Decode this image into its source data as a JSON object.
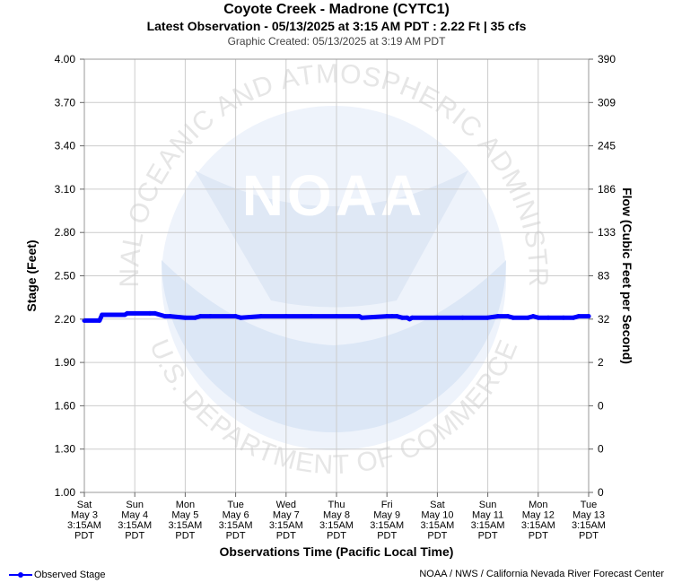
{
  "header": {
    "title": "Coyote Creek - Madrone (CYTC1)",
    "subtitle": "Latest Observation - 05/13/2025 at 3:15 AM PDT : 2.22 Ft | 35 cfs",
    "created": "Graphic Created: 05/13/2025 at 3:19 AM PDT"
  },
  "footer": {
    "legend_label": "Observed Stage",
    "credit": "NOAA / NWS / California Nevada River Forecast Center"
  },
  "watermark": {
    "ring_text_top": "NATIONAL OCEANIC AND ATMOSPHERIC ADMINISTRATION",
    "ring_text_bottom": "U.S. DEPARTMENT OF COMMERCE",
    "logo_text": "NOAA"
  },
  "colors": {
    "series": "#0000ff",
    "grid": "#cccccc",
    "watermark": "#dfe8f5"
  },
  "chart_data": {
    "type": "line",
    "title": "Coyote Creek - Madrone (CYTC1)",
    "xlabel": "Observations Time (Pacific Local Time)",
    "ylabel": "Stage (Feet)",
    "ylabel_right": "Flow (Cubic Feet per Second)",
    "ylim": [
      1.0,
      4.0
    ],
    "xlim": [
      0,
      10
    ],
    "grid": true,
    "legend": "bottom-left",
    "x_ticks": [
      [
        "Sat",
        "May 3",
        "3:15AM",
        "PDT"
      ],
      [
        "Sun",
        "May 4",
        "3:15AM",
        "PDT"
      ],
      [
        "Mon",
        "May 5",
        "3:15AM",
        "PDT"
      ],
      [
        "Tue",
        "May 6",
        "3:15AM",
        "PDT"
      ],
      [
        "Wed",
        "May 7",
        "3:15AM",
        "PDT"
      ],
      [
        "Thu",
        "May 8",
        "3:15AM",
        "PDT"
      ],
      [
        "Fri",
        "May 9",
        "3:15AM",
        "PDT"
      ],
      [
        "Sat",
        "May 10",
        "3:15AM",
        "PDT"
      ],
      [
        "Sun",
        "May 11",
        "3:15AM",
        "PDT"
      ],
      [
        "Mon",
        "May 12",
        "3:15AM",
        "PDT"
      ],
      [
        "Tue",
        "May 13",
        "3:15AM",
        "PDT"
      ]
    ],
    "y_ticks_left": [
      "4.00",
      "3.70",
      "3.40",
      "3.10",
      "2.80",
      "2.50",
      "2.20",
      "1.90",
      "1.60",
      "1.30",
      "1.00"
    ],
    "y_ticks_right": [
      "390",
      "309",
      "245",
      "186",
      "133",
      "83",
      "32",
      "2",
      "0",
      "0",
      "0"
    ],
    "series": [
      {
        "name": "Observed Stage",
        "x": [
          0,
          0.3,
          0.35,
          0.8,
          0.85,
          1.3,
          1.4,
          1.6,
          1.7,
          2.0,
          2.2,
          2.3,
          2.5,
          3.0,
          3.1,
          3.5,
          4.0,
          4.5,
          5.0,
          5.45,
          5.5,
          6.0,
          6.1,
          6.2,
          6.3,
          6.4,
          6.45,
          6.5,
          7.0,
          7.5,
          8.0,
          8.2,
          8.4,
          8.5,
          8.8,
          8.9,
          9.0,
          9.2,
          9.5,
          9.7,
          9.8,
          10.0
        ],
        "y": [
          2.19,
          2.19,
          2.23,
          2.23,
          2.24,
          2.24,
          2.24,
          2.22,
          2.22,
          2.21,
          2.21,
          2.22,
          2.22,
          2.22,
          2.21,
          2.22,
          2.22,
          2.22,
          2.22,
          2.22,
          2.21,
          2.22,
          2.22,
          2.22,
          2.21,
          2.21,
          2.2,
          2.21,
          2.21,
          2.21,
          2.21,
          2.22,
          2.22,
          2.21,
          2.21,
          2.22,
          2.21,
          2.21,
          2.21,
          2.21,
          2.22,
          2.22
        ]
      }
    ]
  }
}
